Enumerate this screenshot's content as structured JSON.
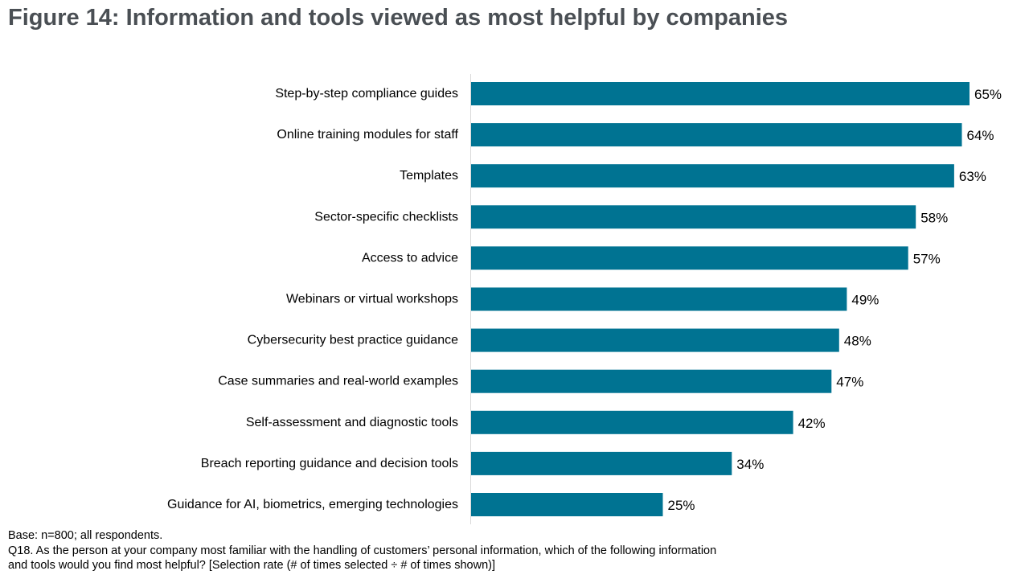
{
  "title": "Figure 14: Information and tools viewed as most helpful by companies",
  "footnotes": [
    "Base: n=800; all respondents.",
    "Q18. As the person at your company most familiar with the handling of customers’ personal information, which of the following information",
    "and tools would you find most helpful? [Selection rate (# of times selected ÷ # of times shown)]"
  ],
  "chart_data": {
    "type": "bar",
    "orientation": "horizontal",
    "categories": [
      "Step-by-step compliance guides",
      "Online training modules for staff",
      "Templates",
      "Sector-specific checklists",
      "Access to advice",
      "Webinars or virtual workshops",
      "Cybersecurity best practice guidance",
      "Case summaries and real-world examples",
      "Self-assessment and diagnostic tools",
      "Breach reporting guidance and decision tools",
      "Guidance for AI, biometrics, emerging technologies"
    ],
    "values": [
      65,
      64,
      63,
      58,
      57,
      49,
      48,
      47,
      42,
      34,
      25
    ],
    "value_labels": [
      "65%",
      "64%",
      "63%",
      "58%",
      "57%",
      "49%",
      "48%",
      "47%",
      "42%",
      "34%",
      "25%"
    ],
    "unit": "%",
    "bar_color": "#007392",
    "grid": false,
    "legend": false
  }
}
